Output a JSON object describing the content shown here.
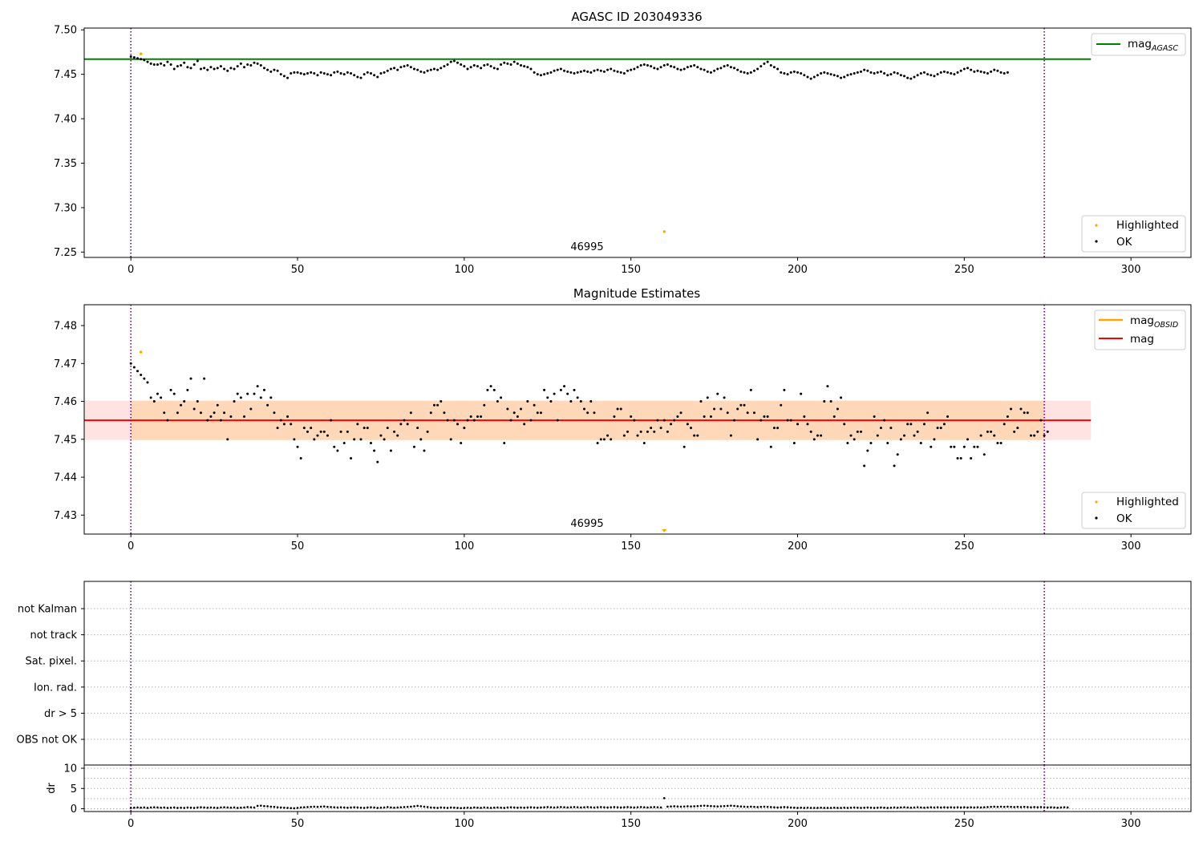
{
  "chart_data": [
    {
      "type": "scatter",
      "title": "AGASC ID 203049336",
      "xlim": [
        -14,
        318
      ],
      "ylim": [
        7.244,
        7.502
      ],
      "xticks": [
        0,
        50,
        100,
        150,
        200,
        250,
        300
      ],
      "yticks": [
        7.25,
        7.3,
        7.35,
        7.4,
        7.45,
        7.5
      ],
      "ytick_labels": [
        "7.25",
        "7.30",
        "7.35",
        "7.40",
        "7.45",
        "7.50"
      ],
      "mag_agasc": 7.467,
      "mag_agasc_xrange": [
        -14,
        288
      ],
      "vlines": [
        0,
        274
      ],
      "annotation": {
        "text": "46995",
        "x": 137
      },
      "legend_top": {
        "position": "top-right",
        "entries": [
          {
            "main": "mag",
            "sub": "AGASC",
            "color": "#008000"
          }
        ]
      },
      "legend_bottom": {
        "position": "bottom-right",
        "entries": [
          {
            "label": "Highlighted",
            "color": "#ffa500"
          },
          {
            "label": "OK",
            "color": "#000000"
          }
        ]
      },
      "series": [
        {
          "name": "OK",
          "color": "#000000",
          "x_start": 0,
          "values": [
            7.47,
            7.469,
            7.468,
            7.467,
            7.466,
            7.464,
            7.462,
            7.461,
            7.461,
            7.462,
            7.46,
            7.464,
            7.461,
            7.456,
            7.459,
            7.46,
            7.463,
            7.458,
            7.457,
            7.461,
            7.465,
            7.456,
            7.457,
            7.455,
            7.458,
            7.456,
            7.457,
            7.459,
            7.456,
            7.454,
            7.457,
            7.456,
            7.459,
            7.462,
            7.458,
            7.461,
            7.46,
            7.463,
            7.462,
            7.46,
            7.457,
            7.455,
            7.453,
            7.455,
            7.454,
            7.45,
            7.448,
            7.446,
            7.451,
            7.452,
            7.452,
            7.451,
            7.45,
            7.451,
            7.452,
            7.451,
            7.449,
            7.452,
            7.451,
            7.45,
            7.449,
            7.452,
            7.453,
            7.451,
            7.45,
            7.452,
            7.451,
            7.449,
            7.447,
            7.446,
            7.45,
            7.452,
            7.451,
            7.449,
            7.447,
            7.451,
            7.452,
            7.454,
            7.456,
            7.457,
            7.455,
            7.458,
            7.459,
            7.46,
            7.458,
            7.456,
            7.455,
            7.453,
            7.452,
            7.454,
            7.455,
            7.456,
            7.455,
            7.457,
            7.459,
            7.461,
            7.464,
            7.465,
            7.463,
            7.461,
            7.459,
            7.456,
            7.458,
            7.46,
            7.459,
            7.457,
            7.46,
            7.461,
            7.459,
            7.457,
            7.456,
            7.461,
            7.463,
            7.462,
            7.461,
            7.464,
            7.462,
            7.46,
            7.459,
            7.458,
            7.456,
            7.452,
            7.45,
            7.449,
            7.45,
            7.451,
            7.452,
            7.454,
            7.455,
            7.456,
            7.454,
            7.453,
            7.452,
            7.451,
            7.452,
            7.453,
            7.454,
            7.453,
            7.452,
            7.454,
            7.455,
            7.454,
            7.453,
            7.455,
            7.456,
            7.454,
            7.453,
            7.452,
            7.451,
            7.454,
            7.455,
            7.456,
            7.458,
            7.46,
            7.461,
            7.46,
            7.459,
            7.457,
            7.456,
            7.458,
            7.46,
            7.461,
            7.459,
            7.458,
            7.456,
            7.455,
            7.456,
            7.458,
            7.459,
            7.46,
            7.458,
            7.456,
            7.455,
            7.453,
            7.452,
            7.454,
            7.456,
            7.457,
            7.459,
            7.46,
            7.458,
            7.457,
            7.455,
            7.453,
            7.452,
            7.451,
            7.452,
            7.454,
            7.456,
            7.459,
            7.462,
            7.464,
            7.46,
            7.458,
            7.456,
            7.452,
            7.451,
            7.45,
            7.452,
            7.453,
            7.452,
            7.451,
            7.449,
            7.447,
            7.445,
            7.447,
            7.449,
            7.451,
            7.452,
            7.451,
            7.45,
            7.449,
            7.448,
            7.446,
            7.447,
            7.449,
            7.45,
            7.451,
            7.452,
            7.453,
            7.455,
            7.454,
            7.452,
            7.451,
            7.452,
            7.453,
            7.451,
            7.449,
            7.45,
            7.452,
            7.451,
            7.449,
            7.448,
            7.446,
            7.445,
            7.447,
            7.449,
            7.451,
            7.452,
            7.45,
            7.449,
            7.448,
            7.45,
            7.452,
            7.453,
            7.452,
            7.451,
            7.45,
            7.452,
            7.454,
            7.456,
            7.457,
            7.455,
            7.453,
            7.454,
            7.453,
            7.452,
            7.451,
            7.453,
            7.455,
            7.454,
            7.452,
            7.451,
            7.452
          ]
        },
        {
          "name": "Highlighted",
          "color": "#ffa500",
          "points": [
            [
              3,
              7.473
            ],
            [
              160,
              7.273
            ]
          ]
        }
      ]
    },
    {
      "type": "scatter",
      "title": "Magnitude Estimates",
      "xlim": [
        -14,
        318
      ],
      "ylim": [
        7.425,
        7.4855
      ],
      "xticks": [
        0,
        50,
        100,
        150,
        200,
        250,
        300
      ],
      "yticks": [
        7.43,
        7.44,
        7.45,
        7.46,
        7.47,
        7.48
      ],
      "ytick_labels": [
        "7.43",
        "7.44",
        "7.45",
        "7.46",
        "7.47",
        "7.48"
      ],
      "mag": 7.455,
      "mag_band": [
        7.4498,
        7.4602
      ],
      "mag_xrange": [
        -14,
        288
      ],
      "mag_obsid": {
        "value": 7.455,
        "band": [
          7.4498,
          7.4602
        ],
        "xrange": [
          0,
          274
        ]
      },
      "vlines": [
        0,
        274
      ],
      "annotation": {
        "text": "46995",
        "x": 137
      },
      "legend_top": {
        "position": "top-right",
        "entries": [
          {
            "main": "mag",
            "sub": "OBSID",
            "color": "#ffa500"
          },
          {
            "main": "mag",
            "sub": "",
            "color": "#ff0000"
          }
        ]
      },
      "legend_bottom": {
        "position": "bottom-right",
        "entries": [
          {
            "label": "Highlighted",
            "color": "#ffa500"
          },
          {
            "label": "OK",
            "color": "#000000"
          }
        ]
      },
      "series": [
        {
          "name": "OK",
          "color": "#000000",
          "x_start": 0,
          "values": [
            7.47,
            7.469,
            7.468,
            7.467,
            7.466,
            7.465,
            7.461,
            7.46,
            7.462,
            7.461,
            7.457,
            7.455,
            7.463,
            7.462,
            7.457,
            7.459,
            7.46,
            7.463,
            7.466,
            7.458,
            7.46,
            7.457,
            7.466,
            7.455,
            7.456,
            7.457,
            7.459,
            7.455,
            7.457,
            7.45,
            7.456,
            7.46,
            7.462,
            7.461,
            7.456,
            7.462,
            7.458,
            7.462,
            7.464,
            7.461,
            7.463,
            7.459,
            7.461,
            7.457,
            7.453,
            7.455,
            7.454,
            7.456,
            7.454,
            7.45,
            7.448,
            7.445,
            7.453,
            7.452,
            7.453,
            7.45,
            7.451,
            7.452,
            7.452,
            7.451,
            7.455,
            7.448,
            7.447,
            7.452,
            7.449,
            7.452,
            7.445,
            7.45,
            7.454,
            7.45,
            7.453,
            7.453,
            7.449,
            7.447,
            7.444,
            7.451,
            7.45,
            7.453,
            7.447,
            7.452,
            7.451,
            7.454,
            7.455,
            7.454,
            7.457,
            7.448,
            7.453,
            7.45,
            7.447,
            7.452,
            7.457,
            7.459,
            7.459,
            7.46,
            7.457,
            7.455,
            7.45,
            7.455,
            7.454,
            7.449,
            7.453,
            7.455,
            7.456,
            7.455,
            7.456,
            7.456,
            7.459,
            7.463,
            7.464,
            7.463,
            7.46,
            7.461,
            7.449,
            7.458,
            7.455,
            7.457,
            7.456,
            7.458,
            7.454,
            7.46,
            7.455,
            7.459,
            7.457,
            7.457,
            7.463,
            7.461,
            7.46,
            7.462,
            7.455,
            7.463,
            7.464,
            7.462,
            7.46,
            7.463,
            7.461,
            7.46,
            7.458,
            7.457,
            7.46,
            7.457,
            7.449,
            7.45,
            7.45,
            7.451,
            7.45,
            7.456,
            7.458,
            7.458,
            7.451,
            7.452,
            7.456,
            7.455,
            7.451,
            7.452,
            7.449,
            7.452,
            7.453,
            7.452,
            7.455,
            7.453,
            7.455,
            7.452,
            7.454,
            7.455,
            7.456,
            7.457,
            7.448,
            7.454,
            7.453,
            7.451,
            7.451,
            7.46,
            7.456,
            7.461,
            7.456,
            7.458,
            7.462,
            7.458,
            7.461,
            7.457,
            7.451,
            7.455,
            7.458,
            7.459,
            7.459,
            7.457,
            7.463,
            7.457,
            7.45,
            7.455,
            7.456,
            7.456,
            7.448,
            7.453,
            7.453,
            7.459,
            7.463,
            7.455,
            7.455,
            7.449,
            7.454,
            7.462,
            7.456,
            7.454,
            7.452,
            7.45,
            7.451,
            7.451,
            7.46,
            7.464,
            7.46,
            7.456,
            7.458,
            7.461,
            7.454,
            7.449,
            7.451,
            7.45,
            7.452,
            7.452,
            7.443,
            7.447,
            7.449,
            7.456,
            7.451,
            7.453,
            7.455,
            7.449,
            7.453,
            7.443,
            7.446,
            7.45,
            7.451,
            7.454,
            7.454,
            7.451,
            7.452,
            7.449,
            7.454,
            7.457,
            7.448,
            7.45,
            7.453,
            7.453,
            7.454,
            7.456,
            7.448,
            7.448,
            7.445,
            7.445,
            7.448,
            7.45,
            7.445,
            7.448,
            7.448,
            7.451,
            7.446,
            7.452,
            7.452,
            7.451,
            7.449,
            7.449,
            7.454,
            7.456,
            7.458,
            7.452,
            7.453,
            7.458,
            7.457,
            7.457,
            7.451,
            7.451,
            7.452,
            7.455,
            7.451,
            7.452
          ]
        },
        {
          "name": "Highlighted",
          "color": "#ffa500",
          "points": [
            [
              3,
              7.473
            ]
          ],
          "offscale": [
            [
              160,
              7.425
            ]
          ]
        }
      ]
    },
    {
      "type": "scatter",
      "title": "",
      "xlim": [
        -14,
        318
      ],
      "xticks": [
        0,
        50,
        100,
        150,
        200,
        250,
        300
      ],
      "categories": [
        "not Kalman",
        "not track",
        "Sat. pixel.",
        "Ion. rad.",
        "dr > 5",
        "OBS not OK"
      ],
      "flags": [],
      "vlines": [
        0,
        274
      ]
    },
    {
      "type": "scatter",
      "title": "",
      "ylabel": "dr",
      "xlim": [
        -14,
        318
      ],
      "ylim": [
        -0.7,
        10.8
      ],
      "xticks": [
        0,
        50,
        100,
        150,
        200,
        250,
        300
      ],
      "yticks": [
        0,
        5,
        10
      ],
      "ytick_labels": [
        "0",
        "5",
        "10"
      ],
      "vlines": [
        0,
        274
      ],
      "series": [
        {
          "name": "dr",
          "color": "#000000",
          "x_start": 0,
          "values": [
            0.2,
            0.25,
            0.3,
            0.25,
            0.3,
            0.2,
            0.3,
            0.35,
            0.3,
            0.25,
            0.3,
            0.2,
            0.25,
            0.3,
            0.2,
            0.25,
            0.2,
            0.3,
            0.25,
            0.2,
            0.3,
            0.35,
            0.3,
            0.25,
            0.3,
            0.25,
            0.2,
            0.3,
            0.35,
            0.3,
            0.25,
            0.3,
            0.2,
            0.25,
            0.3,
            0.4,
            0.35,
            0.3,
            0.7,
            0.75,
            0.65,
            0.6,
            0.5,
            0.45,
            0.35,
            0.3,
            0.25,
            0.2,
            0.15,
            0.1,
            0.2,
            0.3,
            0.35,
            0.4,
            0.45,
            0.5,
            0.45,
            0.5,
            0.55,
            0.45,
            0.4,
            0.35,
            0.3,
            0.35,
            0.3,
            0.25,
            0.3,
            0.35,
            0.3,
            0.25,
            0.2,
            0.3,
            0.35,
            0.3,
            0.2,
            0.25,
            0.3,
            0.4,
            0.3,
            0.25,
            0.3,
            0.35,
            0.4,
            0.45,
            0.5,
            0.6,
            0.7,
            0.6,
            0.5,
            0.4,
            0.3,
            0.25,
            0.2,
            0.3,
            0.25,
            0.2,
            0.3,
            0.25,
            0.2,
            0.15,
            0.2,
            0.25,
            0.2,
            0.3,
            0.25,
            0.2,
            0.3,
            0.25,
            0.2,
            0.25,
            0.3,
            0.25,
            0.2,
            0.3,
            0.35,
            0.3,
            0.25,
            0.3,
            0.25,
            0.3,
            0.35,
            0.3,
            0.25,
            0.3,
            0.35,
            0.4,
            0.35,
            0.3,
            0.35,
            0.4,
            0.35,
            0.3,
            0.35,
            0.4,
            0.35,
            0.3,
            0.35,
            0.4,
            0.35,
            0.3,
            0.35,
            0.4,
            0.35,
            0.3,
            0.35,
            0.4,
            0.35,
            0.3,
            0.35,
            0.4,
            0.35,
            0.3,
            0.35,
            0.4,
            0.35,
            0.3,
            0.35,
            0.4,
            0.35,
            0.3,
            2.6,
            0.5,
            0.55,
            0.6,
            0.55,
            0.5,
            0.55,
            0.6,
            0.55,
            0.6,
            0.65,
            0.7,
            0.75,
            0.7,
            0.65,
            0.6,
            0.55,
            0.6,
            0.65,
            0.7,
            0.75,
            0.7,
            0.6,
            0.55,
            0.5,
            0.45,
            0.5,
            0.45,
            0.4,
            0.45,
            0.5,
            0.45,
            0.4,
            0.35,
            0.3,
            0.35,
            0.4,
            0.35,
            0.3,
            0.25,
            0.2,
            0.25,
            0.2,
            0.25,
            0.2,
            0.2,
            0.2,
            0.25,
            0.2,
            0.2,
            0.2,
            0.25,
            0.2,
            0.2,
            0.25,
            0.2,
            0.25,
            0.3,
            0.25,
            0.2,
            0.25,
            0.3,
            0.25,
            0.2,
            0.25,
            0.3,
            0.25,
            0.2,
            0.25,
            0.3,
            0.25,
            0.3,
            0.35,
            0.3,
            0.25,
            0.3,
            0.35,
            0.3,
            0.25,
            0.3,
            0.35,
            0.3,
            0.35,
            0.3,
            0.35,
            0.3,
            0.35,
            0.3,
            0.35,
            0.3,
            0.35,
            0.3,
            0.35,
            0.3,
            0.35,
            0.3,
            0.35,
            0.4,
            0.45,
            0.5,
            0.45,
            0.5,
            0.45,
            0.5,
            0.45,
            0.4,
            0.45,
            0.4,
            0.45,
            0.4,
            0.35,
            0.4,
            0.35,
            0.4,
            0.35,
            0.3,
            0.35,
            0.3,
            0.25,
            0.3,
            0.35,
            0.3
          ]
        }
      ]
    }
  ]
}
